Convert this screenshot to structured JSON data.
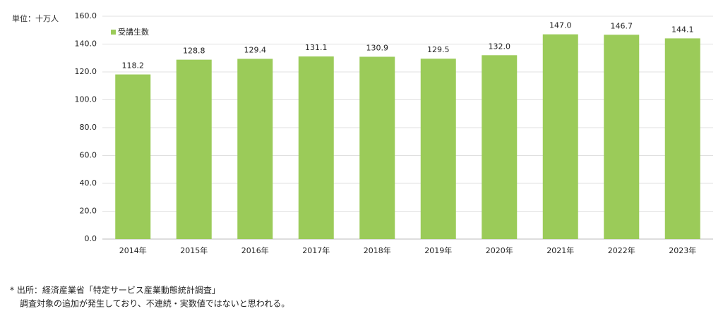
{
  "chart_data": {
    "type": "bar",
    "unit_label": "単位：十万人",
    "categories": [
      "2014年",
      "2015年",
      "2016年",
      "2017年",
      "2018年",
      "2019年",
      "2020年",
      "2021年",
      "2022年",
      "2023年"
    ],
    "series": [
      {
        "name": "受講生数",
        "color": "#9bcb59",
        "values": [
          118.2,
          128.8,
          129.4,
          131.1,
          130.9,
          129.5,
          132.0,
          147.0,
          146.7,
          144.1
        ],
        "value_labels": [
          "118.2",
          "128.8",
          "129.4",
          "131.1",
          "130.9",
          "129.5",
          "132.0",
          "147.0",
          "146.7",
          "144.1"
        ]
      }
    ],
    "ylim": [
      0,
      160
    ],
    "yticks": [
      {
        "value": 0,
        "label": "0.0"
      },
      {
        "value": 20,
        "label": "20.0"
      },
      {
        "value": 40,
        "label": "40.0"
      },
      {
        "value": 60,
        "label": "60.0"
      },
      {
        "value": 80,
        "label": "80.0"
      },
      {
        "value": 100,
        "label": "100.0"
      },
      {
        "value": 120,
        "label": "120.0"
      },
      {
        "value": 140,
        "label": "140.0"
      },
      {
        "value": 160,
        "label": "160.0"
      }
    ],
    "grid": true,
    "legend": "top-left",
    "footnotes": [
      "*  出所：経済産業省「特定サービス産業動態統計調査」",
      "調査対象の追加が発生しており、不連続・実数値ではないと思われる。"
    ]
  }
}
